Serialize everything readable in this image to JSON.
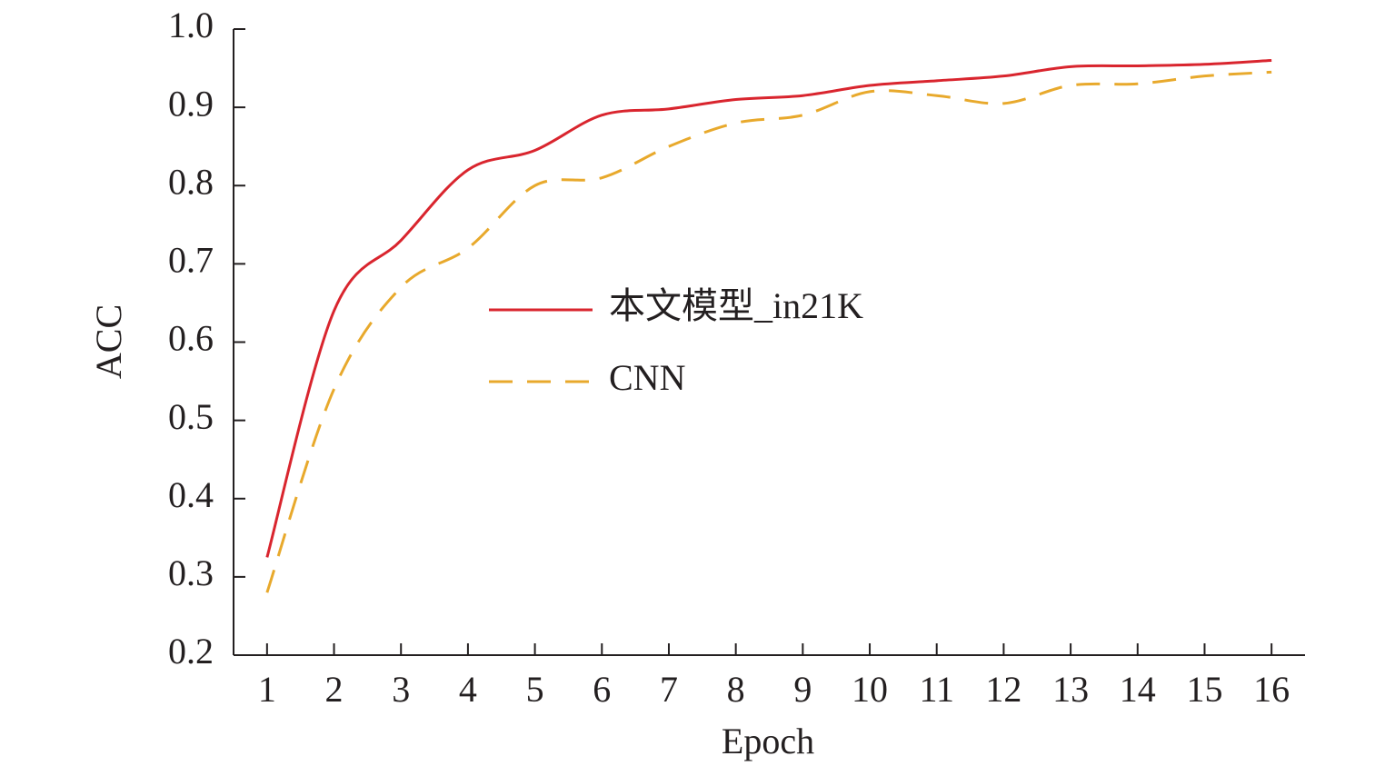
{
  "chart_data": {
    "type": "line",
    "x_label": "Epoch",
    "y_label": "ACC",
    "x": [
      1,
      2,
      3,
      4,
      5,
      6,
      7,
      8,
      9,
      10,
      11,
      12,
      13,
      14,
      15,
      16
    ],
    "series": [
      {
        "name": "本文模型_in21K",
        "color": "#d9252e",
        "style": "solid",
        "values": [
          0.325,
          0.64,
          0.73,
          0.82,
          0.845,
          0.89,
          0.898,
          0.91,
          0.915,
          0.928,
          0.934,
          0.94,
          0.952,
          0.953,
          0.955,
          0.96
        ]
      },
      {
        "name": "CNN",
        "color": "#e8a92c",
        "style": "dashed",
        "values": [
          0.28,
          0.54,
          0.67,
          0.72,
          0.8,
          0.81,
          0.85,
          0.88,
          0.89,
          0.92,
          0.915,
          0.905,
          0.928,
          0.93,
          0.94,
          0.945
        ]
      }
    ],
    "xlim": [
      0.5,
      16.5
    ],
    "xticks": [
      1,
      2,
      3,
      4,
      5,
      6,
      7,
      8,
      9,
      10,
      11,
      12,
      13,
      14,
      15,
      16
    ],
    "ylim": [
      0.2,
      1.0
    ],
    "yticks": [
      0.2,
      0.3,
      0.4,
      0.5,
      0.6,
      0.7,
      0.8,
      0.9,
      {
        "value": 1.0,
        "label": "1.0"
      }
    ],
    "grid": false,
    "legend": "center"
  }
}
